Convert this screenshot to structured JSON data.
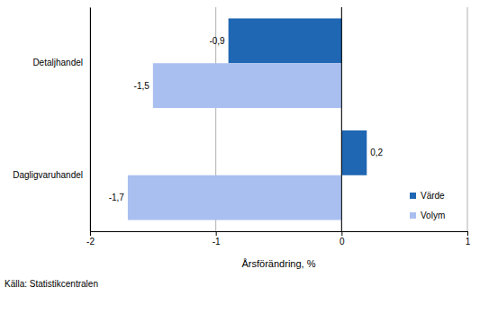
{
  "chart_data": {
    "type": "bar",
    "orientation": "horizontal",
    "categories": [
      "Detaljhandel",
      "Dagligvaruhandel"
    ],
    "series": [
      {
        "name": "Värde",
        "color": "#1f66b3",
        "values": [
          -0.9,
          0.2
        ],
        "value_labels": [
          "-0,9",
          "0,2"
        ]
      },
      {
        "name": "Volym",
        "color": "#a9bff0",
        "values": [
          -1.5,
          -1.7
        ],
        "value_labels": [
          "-1,5",
          "-1,7"
        ]
      }
    ],
    "xlabel": "Årsförändring, %",
    "xlim": [
      -2,
      1
    ],
    "xticks": [
      -2,
      -1,
      0,
      1
    ],
    "grid": true,
    "data_labels": true,
    "legend": "lower right",
    "annotations": [
      "Källa: Statistikcentralen"
    ]
  }
}
